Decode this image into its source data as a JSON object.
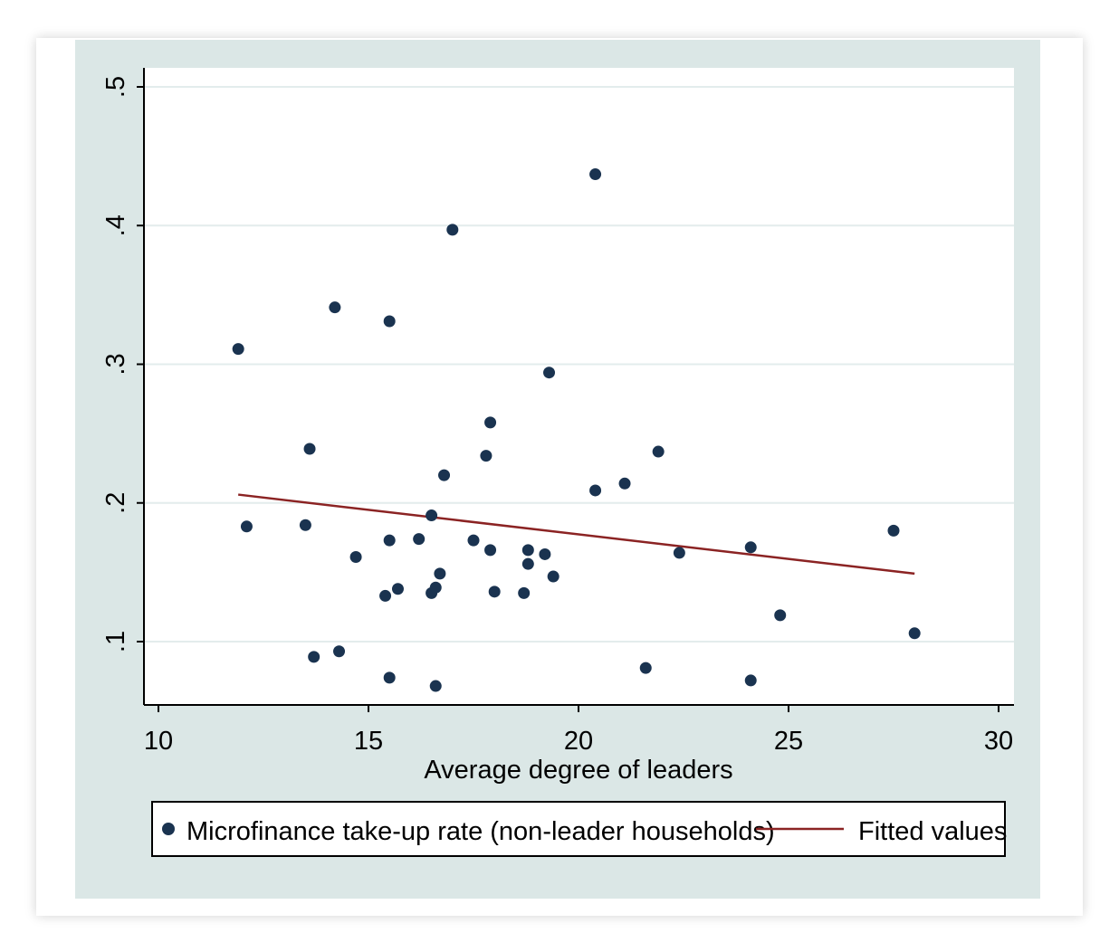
{
  "chart_data": {
    "type": "scatter",
    "title": "",
    "xlabel": "Average degree of leaders",
    "ylabel": "",
    "xlim": [
      10,
      30
    ],
    "ylim": [
      0.05,
      0.5
    ],
    "xticks": [
      10,
      15,
      20,
      25,
      30
    ],
    "xtick_labels": [
      "10",
      "15",
      "20",
      "25",
      "30"
    ],
    "yticks": [
      0.1,
      0.2,
      0.3,
      0.4,
      0.5
    ],
    "ytick_labels": [
      ".1",
      ".2",
      ".3",
      ".4",
      ".5"
    ],
    "grid": "horizontal",
    "legend_position": "bottom",
    "series": [
      {
        "name": "Microfinance take-up rate (non-leader households)",
        "type": "scatter",
        "color": "#1a3350",
        "points": [
          [
            11.9,
            0.311
          ],
          [
            12.1,
            0.183
          ],
          [
            13.5,
            0.184
          ],
          [
            13.6,
            0.239
          ],
          [
            13.7,
            0.089
          ],
          [
            14.2,
            0.341
          ],
          [
            14.3,
            0.093
          ],
          [
            14.7,
            0.161
          ],
          [
            15.4,
            0.133
          ],
          [
            15.5,
            0.173
          ],
          [
            15.5,
            0.331
          ],
          [
            15.5,
            0.074
          ],
          [
            15.7,
            0.138
          ],
          [
            16.2,
            0.174
          ],
          [
            16.5,
            0.191
          ],
          [
            16.5,
            0.135
          ],
          [
            16.6,
            0.139
          ],
          [
            16.6,
            0.068
          ],
          [
            16.7,
            0.149
          ],
          [
            16.8,
            0.22
          ],
          [
            17.0,
            0.397
          ],
          [
            17.5,
            0.173
          ],
          [
            17.8,
            0.234
          ],
          [
            17.9,
            0.258
          ],
          [
            17.9,
            0.166
          ],
          [
            18.0,
            0.136
          ],
          [
            18.7,
            0.135
          ],
          [
            18.8,
            0.166
          ],
          [
            18.8,
            0.156
          ],
          [
            19.2,
            0.163
          ],
          [
            19.3,
            0.294
          ],
          [
            19.4,
            0.147
          ],
          [
            20.4,
            0.209
          ],
          [
            20.4,
            0.437
          ],
          [
            21.1,
            0.214
          ],
          [
            21.6,
            0.081
          ],
          [
            21.9,
            0.237
          ],
          [
            22.4,
            0.164
          ],
          [
            24.1,
            0.168
          ],
          [
            24.1,
            0.072
          ],
          [
            24.8,
            0.119
          ],
          [
            27.5,
            0.18
          ],
          [
            28.0,
            0.106
          ]
        ]
      },
      {
        "name": "Fitted values",
        "type": "line",
        "color": "#8b2323",
        "x": [
          11.9,
          28.0
        ],
        "y": [
          0.206,
          0.149
        ]
      }
    ]
  }
}
